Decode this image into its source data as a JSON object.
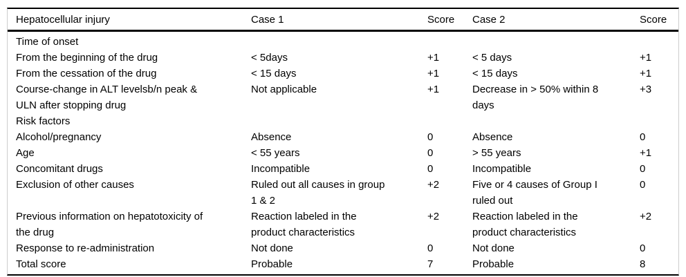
{
  "page": {
    "background_color": "#ffffff",
    "text_color": "#000000",
    "rule_color": "#000000",
    "side_border_color": "#cccccc"
  },
  "table": {
    "columns": [
      "Hepatocellular injury",
      "Case 1",
      "Score",
      "Case 2",
      "Score"
    ],
    "rows": [
      {
        "label": "Time of onset",
        "case1": "",
        "score1": "",
        "case2": "",
        "score2": ""
      },
      {
        "label": "From the beginning of the drug",
        "case1": "< 5days",
        "score1": "+1",
        "case2": "< 5 days",
        "score2": "+1"
      },
      {
        "label": "From the cessation of the drug",
        "case1": "< 15 days",
        "score1": "+1",
        "case2": "< 15 days",
        "score2": "+1"
      },
      {
        "label": "Course-change in ALT levelsb/n peak &\nULN after stopping drug",
        "case1": "Not applicable",
        "score1": "+1",
        "case2": "Decrease in > 50% within 8\ndays",
        "score2": "+3"
      },
      {
        "label": "Risk factors",
        "case1": "",
        "score1": "",
        "case2": "",
        "score2": ""
      },
      {
        "label": "Alcohol/pregnancy",
        "case1": "Absence",
        "score1": "0",
        "case2": "Absence",
        "score2": "0"
      },
      {
        "label": "Age",
        "case1": "< 55 years",
        "score1": "0",
        "case2": "> 55 years",
        "score2": "+1"
      },
      {
        "label": "Concomitant drugs",
        "case1": "Incompatible",
        "score1": "0",
        "case2": "Incompatible",
        "score2": "0"
      },
      {
        "label": "Exclusion of other causes",
        "case1": "Ruled out all causes in group\n1 & 2",
        "score1": "+2",
        "case2": "Five or 4 causes of Group I\nruled out",
        "score2": "0"
      },
      {
        "label": "Previous information on hepatotoxicity of\nthe drug",
        "case1": "Reaction labeled in the\nproduct characteristics",
        "score1": "+2",
        "case2": "Reaction labeled in the\nproduct characteristics",
        "score2": "+2"
      },
      {
        "label": "Response to re-administration",
        "case1": "Not done",
        "score1": "0",
        "case2": "Not done",
        "score2": "0"
      },
      {
        "label": "Total score",
        "case1": "Probable",
        "score1": "7",
        "case2": "Probable",
        "score2": "8"
      }
    ]
  }
}
